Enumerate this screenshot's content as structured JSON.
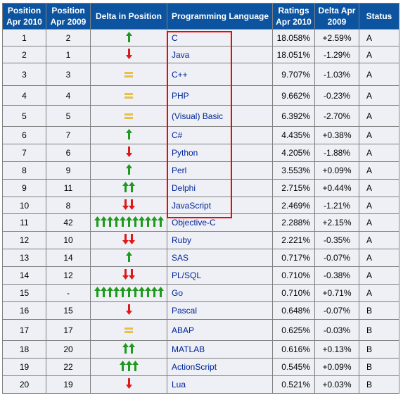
{
  "headers": {
    "pos2010": "Position Apr 2010",
    "pos2009": "Position Apr 2009",
    "delta": "Delta in Position",
    "lang": "Programming Language",
    "ratings": "Ratings Apr 2010",
    "deltarating": "Delta Apr 2009",
    "status": "Status"
  },
  "colors": {
    "header_bg": "#0d54a0",
    "up": "#1e9a1e",
    "down": "#e01818",
    "same": "#e8c048",
    "highlight": "#ff0000",
    "link": "#00259a"
  },
  "rows": [
    {
      "pos2010": "1",
      "pos2009": "2",
      "lang": "C",
      "rating": "18.058%",
      "delta": "+2.59%",
      "status": "A",
      "dir": "up",
      "count": 1
    },
    {
      "pos2010": "2",
      "pos2009": "1",
      "lang": "Java",
      "rating": "18.051%",
      "delta": "-1.29%",
      "status": "A",
      "dir": "down",
      "count": 1
    },
    {
      "pos2010": "3",
      "pos2009": "3",
      "lang": "C++",
      "rating": "9.707%",
      "delta": "-1.03%",
      "status": "A",
      "dir": "same",
      "count": 1
    },
    {
      "pos2010": "4",
      "pos2009": "4",
      "lang": "PHP",
      "rating": "9.662%",
      "delta": "-0.23%",
      "status": "A",
      "dir": "same",
      "count": 1
    },
    {
      "pos2010": "5",
      "pos2009": "5",
      "lang": "(Visual) Basic",
      "rating": "6.392%",
      "delta": "-2.70%",
      "status": "A",
      "dir": "same",
      "count": 1
    },
    {
      "pos2010": "6",
      "pos2009": "7",
      "lang": "C#",
      "rating": "4.435%",
      "delta": "+0.38%",
      "status": "A",
      "dir": "up",
      "count": 1
    },
    {
      "pos2010": "7",
      "pos2009": "6",
      "lang": "Python",
      "rating": "4.205%",
      "delta": "-1.88%",
      "status": "A",
      "dir": "down",
      "count": 1
    },
    {
      "pos2010": "8",
      "pos2009": "9",
      "lang": "Perl",
      "rating": "3.553%",
      "delta": "+0.09%",
      "status": "A",
      "dir": "up",
      "count": 1
    },
    {
      "pos2010": "9",
      "pos2009": "11",
      "lang": "Delphi",
      "rating": "2.715%",
      "delta": "+0.44%",
      "status": "A",
      "dir": "up",
      "count": 2
    },
    {
      "pos2010": "10",
      "pos2009": "8",
      "lang": "JavaScript",
      "rating": "2.469%",
      "delta": "-1.21%",
      "status": "A",
      "dir": "down",
      "count": 2
    },
    {
      "pos2010": "11",
      "pos2009": "42",
      "lang": "Objective-C",
      "rating": "2.288%",
      "delta": "+2.15%",
      "status": "A",
      "dir": "up",
      "count": 11
    },
    {
      "pos2010": "12",
      "pos2009": "10",
      "lang": "Ruby",
      "rating": "2.221%",
      "delta": "-0.35%",
      "status": "A",
      "dir": "down",
      "count": 2
    },
    {
      "pos2010": "13",
      "pos2009": "14",
      "lang": "SAS",
      "rating": "0.717%",
      "delta": "-0.07%",
      "status": "A",
      "dir": "up",
      "count": 1
    },
    {
      "pos2010": "14",
      "pos2009": "12",
      "lang": "PL/SQL",
      "rating": "0.710%",
      "delta": "-0.38%",
      "status": "A",
      "dir": "down",
      "count": 2
    },
    {
      "pos2010": "15",
      "pos2009": "-",
      "lang": "Go",
      "rating": "0.710%",
      "delta": "+0.71%",
      "status": "A",
      "dir": "up",
      "count": 11
    },
    {
      "pos2010": "16",
      "pos2009": "15",
      "lang": "Pascal",
      "rating": "0.648%",
      "delta": "-0.07%",
      "status": "B",
      "dir": "down",
      "count": 1
    },
    {
      "pos2010": "17",
      "pos2009": "17",
      "lang": "ABAP",
      "rating": "0.625%",
      "delta": "-0.03%",
      "status": "B",
      "dir": "same",
      "count": 1
    },
    {
      "pos2010": "18",
      "pos2009": "20",
      "lang": "MATLAB",
      "rating": "0.616%",
      "delta": "+0.13%",
      "status": "B",
      "dir": "up",
      "count": 2
    },
    {
      "pos2010": "19",
      "pos2009": "22",
      "lang": "ActionScript",
      "rating": "0.545%",
      "delta": "+0.09%",
      "status": "B",
      "dir": "up",
      "count": 3
    },
    {
      "pos2010": "20",
      "pos2009": "19",
      "lang": "Lua",
      "rating": "0.521%",
      "delta": "+0.03%",
      "status": "B",
      "dir": "down",
      "count": 1
    }
  ]
}
